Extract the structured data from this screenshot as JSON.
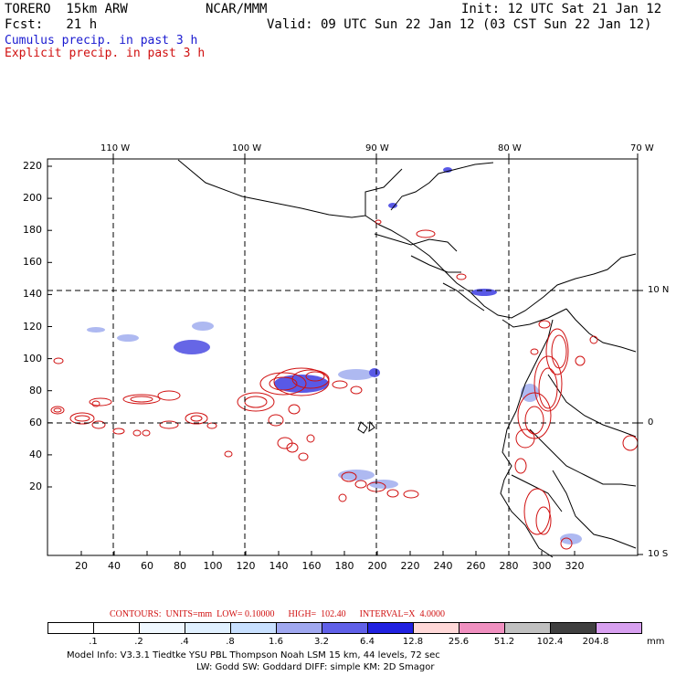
{
  "header": {
    "model": "TORERO  15km ARW",
    "org": "NCAR/MMM",
    "init": "Init: 12 UTC Sat 21 Jan 12",
    "fcst": "Fcst:   21 h",
    "valid": "Valid: 09 UTC Sun 22 Jan 12 (03 CST Sun 22 Jan 12)",
    "cumulus": "Cumulus precip. in past 3 h",
    "explicit": "Explicit precip. in past 3 h"
  },
  "axes": {
    "top_lon": [
      "110 W",
      "100 W",
      "90 W",
      "80 W",
      "70 W"
    ],
    "right_lat": [
      "10 N",
      "0",
      "10 S"
    ],
    "left_y": [
      "220",
      "200",
      "180",
      "160",
      "140",
      "120",
      "100",
      "80",
      "60",
      "40",
      "20"
    ],
    "bottom_x": [
      "20",
      "40",
      "60",
      "80",
      "100",
      "120",
      "140",
      "160",
      "180",
      "200",
      "220",
      "240",
      "260",
      "280",
      "300",
      "320"
    ]
  },
  "contour_info": "CONTOURS:  UNITS=mm  LOW= 0.10000      HIGH=  102.40      INTERVAL=X  4.0000",
  "colorbar": {
    "unit": "mm",
    "ticks": [
      ".1",
      ".2",
      ".4",
      ".8",
      "1.6",
      "3.2",
      "6.4",
      "12.8",
      "25.6",
      "51.2",
      "102.4",
      "204.8"
    ],
    "colors": [
      "#ffffff",
      "#ffffff",
      "#f0f8ff",
      "#e0f0ff",
      "#c8e0ff",
      "#a0a8f0",
      "#6060e8",
      "#2020e0",
      "#ffd8d8",
      "#f090c0",
      "#c0c0c0",
      "#404040",
      "#d8a0f0"
    ]
  },
  "footer": {
    "line1": "Model Info: V3.3.1    Tiedtke YSU PBL   Thompson      Noah LSM  15 km,   44 levels,   72 sec",
    "line2": "LW: Godd SW: Goddard DIFF: simple KM: 2D Smagor"
  }
}
